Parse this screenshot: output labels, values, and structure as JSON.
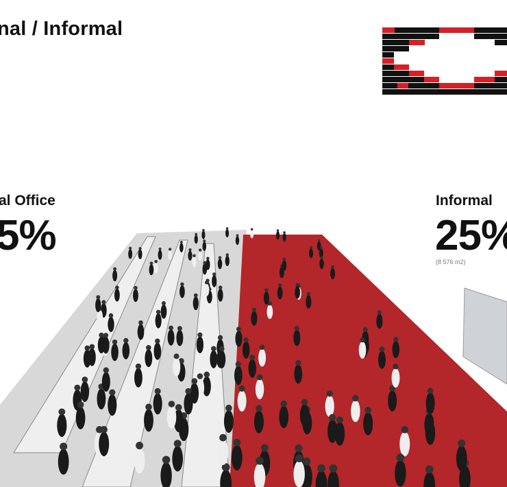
{
  "header": {
    "title": "nal / Informal"
  },
  "logo": {
    "colors": {
      "red": "#d42027",
      "black": "#111111"
    }
  },
  "formal": {
    "label": "al Office",
    "percent": "5%"
  },
  "informal": {
    "label": "Informal",
    "percent": "25%",
    "area": "(8 576 m2)"
  },
  "scene": {
    "carpet_color": "#b3262a",
    "office_color": "#cfcfcf"
  }
}
